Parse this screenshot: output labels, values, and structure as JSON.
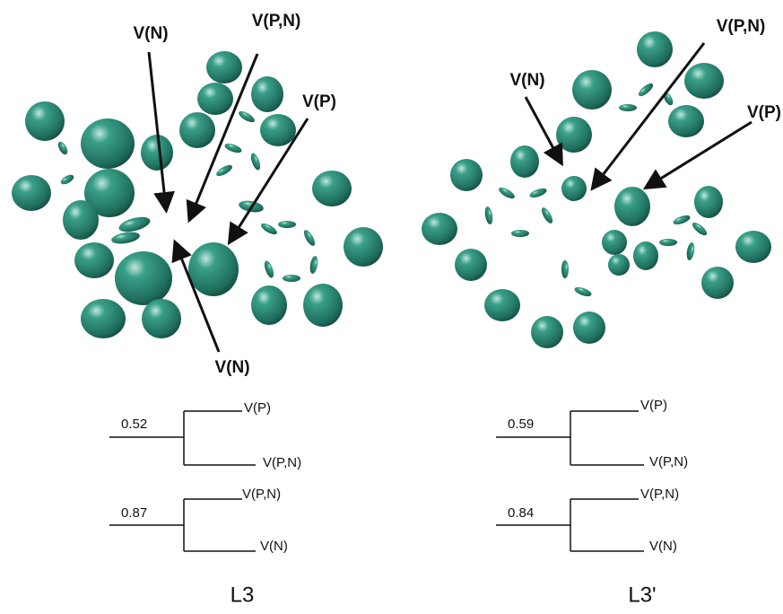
{
  "panels": [
    {
      "label": "L3",
      "annotations": [
        "V(N)",
        "V(P,N)",
        "V(P)",
        "V(N)"
      ],
      "trees": [
        {
          "value": "0.52",
          "upper": "V(P)",
          "lower": "V(P,N)"
        },
        {
          "value": "0.87",
          "upper": "V(P,N)",
          "lower": "V(N)"
        }
      ]
    },
    {
      "label": "L3'",
      "annotations": [
        "V(N)",
        "V(P,N)",
        "V(P)"
      ],
      "trees": [
        {
          "value": "0.59",
          "upper": "V(P)",
          "lower": "V(P,N)"
        },
        {
          "value": "0.84",
          "upper": "V(P,N)",
          "lower": "V(N)"
        }
      ]
    }
  ]
}
